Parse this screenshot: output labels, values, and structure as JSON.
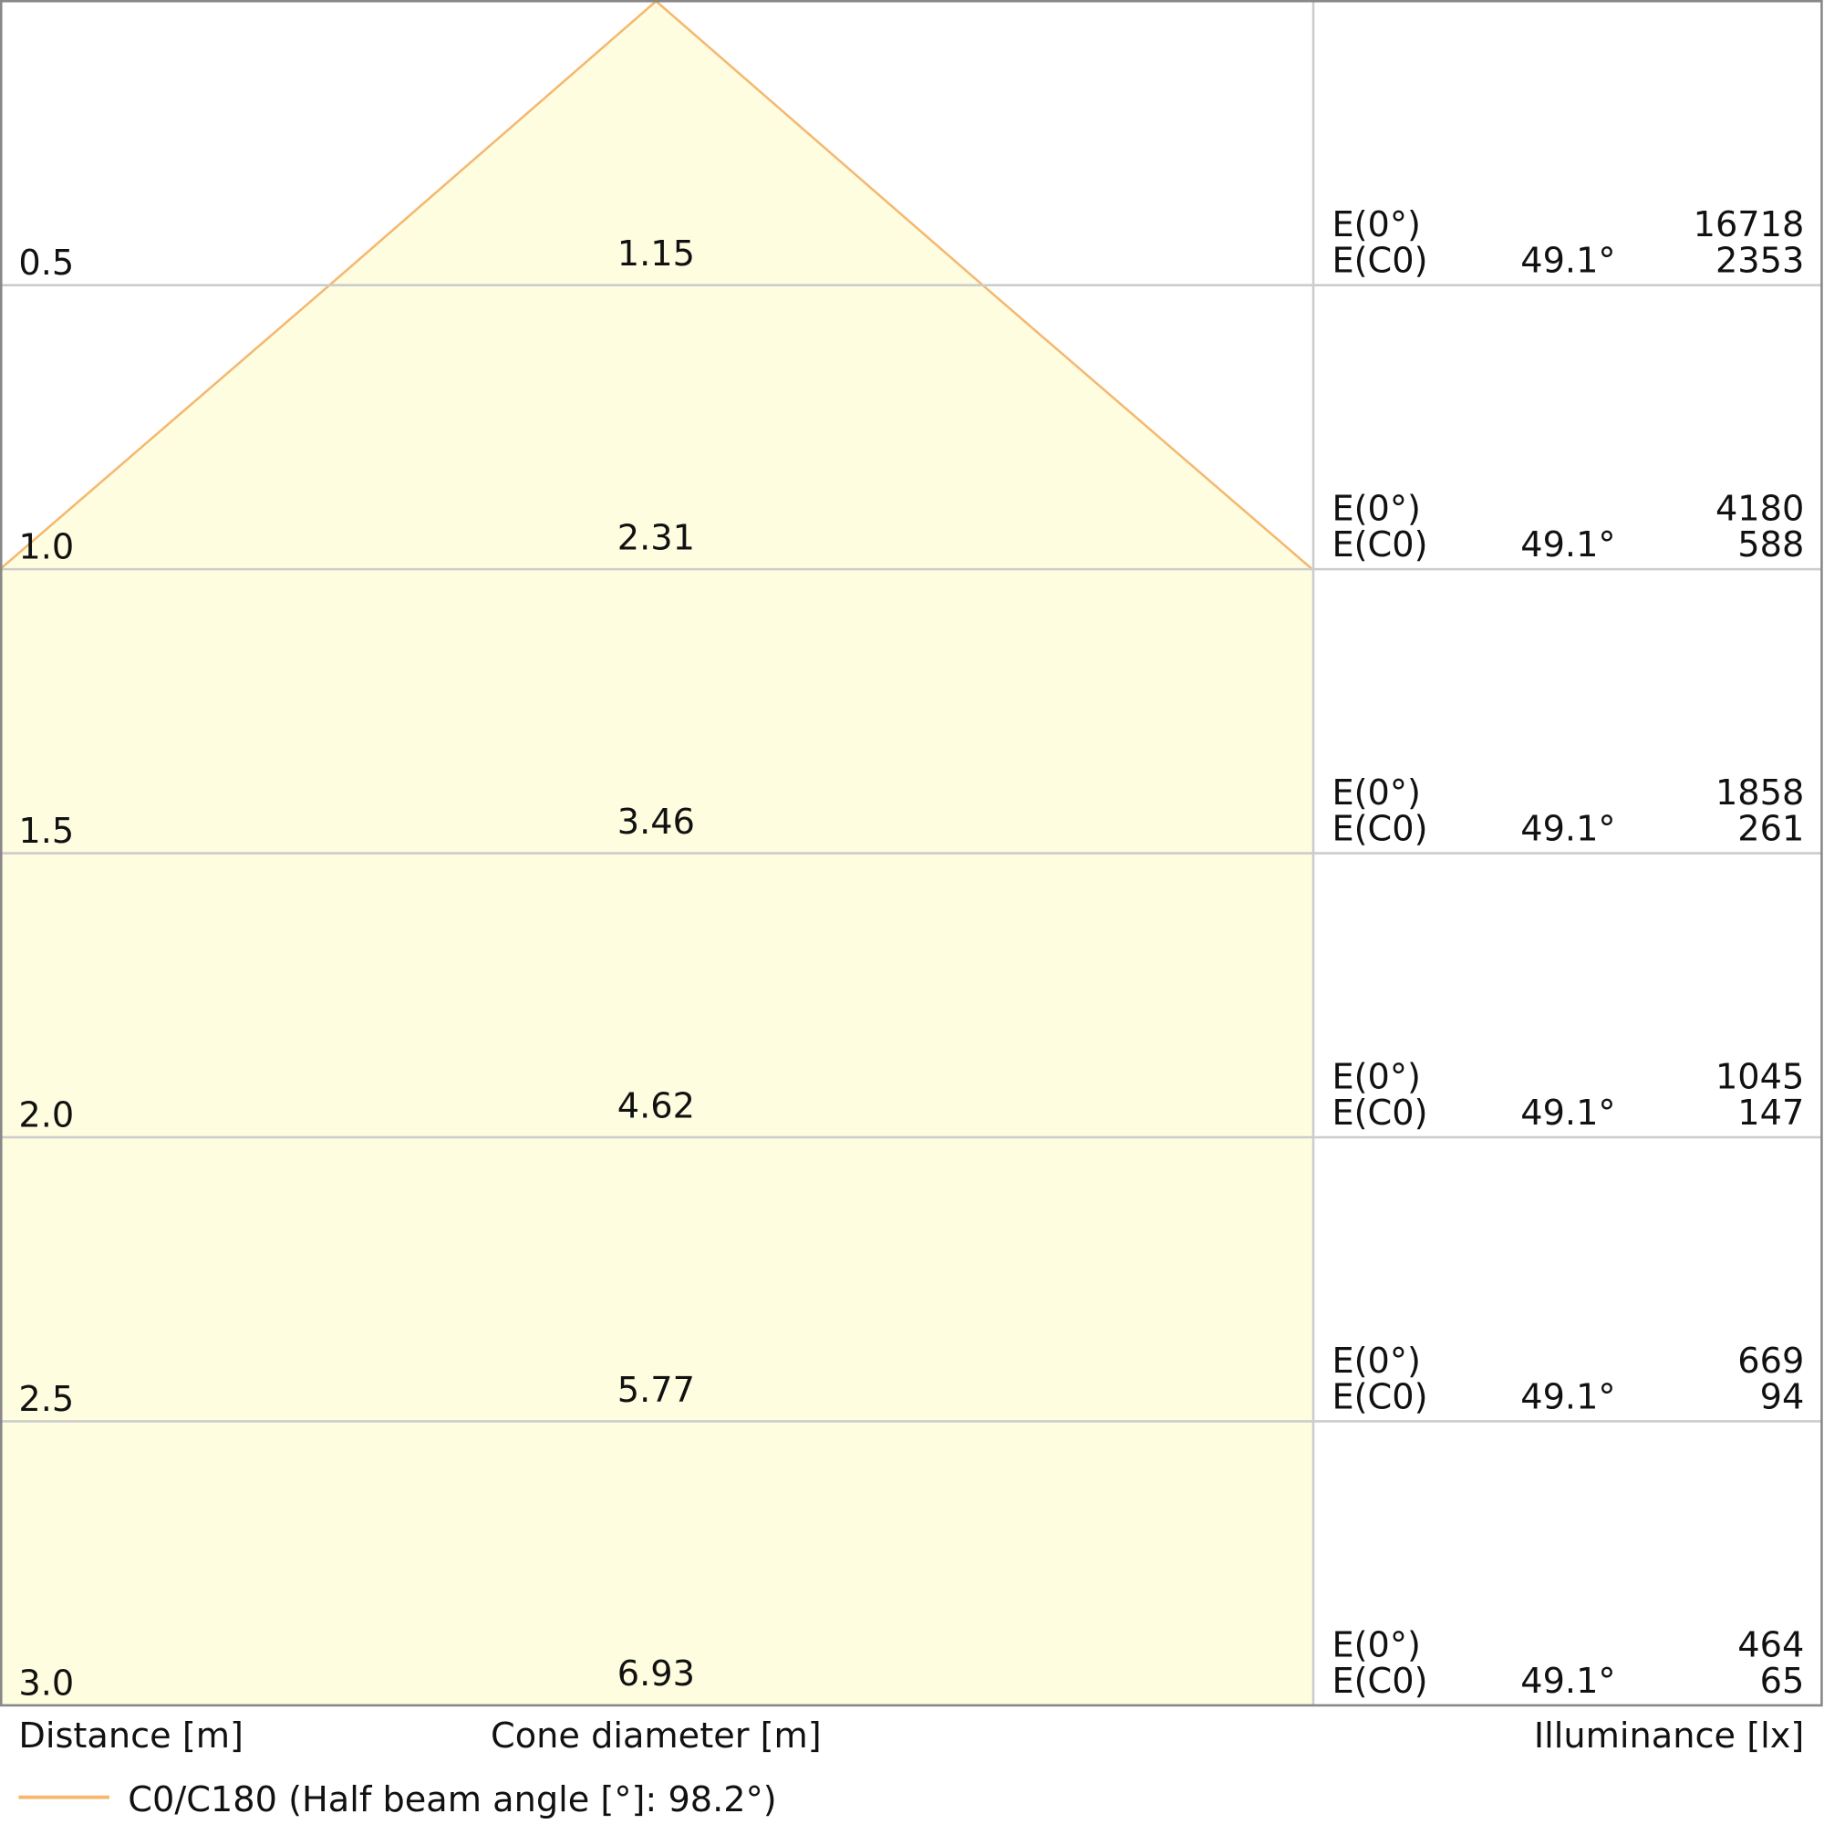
{
  "chart_data": {
    "type": "cone",
    "legend": "C0/C180 (Half beam angle [°]: 98.2°)",
    "color": "#f5b870",
    "fill": "#fefde0",
    "x_label": "Distance [m]",
    "center_label": "Cone diameter [m]",
    "right_label": "Illuminance [lx]",
    "e0_label": "E(0°)",
    "ec0_label": "E(C0)",
    "ylim": [
      0,
      3.0
    ],
    "distances": [
      0.5,
      1.0,
      1.5,
      2.0,
      2.5,
      3.0
    ],
    "distance_labels": [
      "0.5",
      "1.0",
      "1.5",
      "2.0",
      "2.5",
      "3.0"
    ],
    "diameters": [
      1.15,
      2.31,
      3.46,
      4.62,
      5.77,
      6.93
    ],
    "angles": [
      49.1,
      49.1,
      49.1,
      49.1,
      49.1,
      49.1
    ],
    "angle_labels": [
      "49.1°",
      "49.1°",
      "49.1°",
      "49.1°",
      "49.1°",
      "49.1°"
    ],
    "e0": [
      16718,
      4180,
      1858,
      1045,
      669,
      464
    ],
    "ec0": [
      2353,
      588,
      261,
      147,
      94,
      65
    ]
  }
}
